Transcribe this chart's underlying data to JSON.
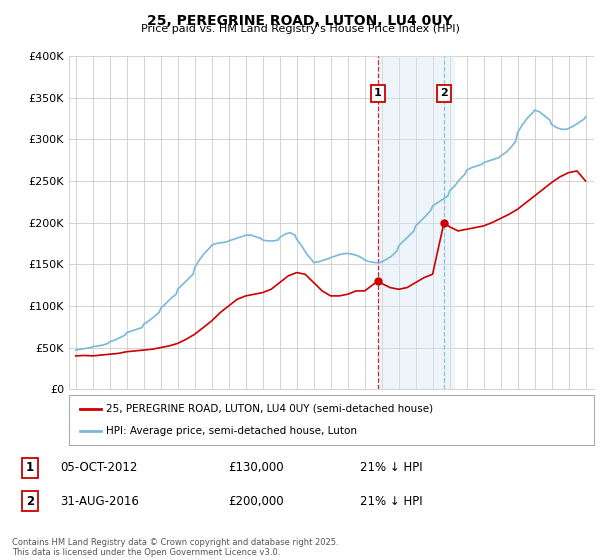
{
  "title": "25, PEREGRINE ROAD, LUTON, LU4 0UY",
  "subtitle": "Price paid vs. HM Land Registry's House Price Index (HPI)",
  "ylim": [
    0,
    400000
  ],
  "yticks": [
    0,
    50000,
    100000,
    150000,
    200000,
    250000,
    300000,
    350000,
    400000
  ],
  "ytick_labels": [
    "£0",
    "£50K",
    "£100K",
    "£150K",
    "£200K",
    "£250K",
    "£300K",
    "£350K",
    "£400K"
  ],
  "legend_entries": [
    "25, PEREGRINE ROAD, LUTON, LU4 0UY (semi-detached house)",
    "HPI: Average price, semi-detached house, Luton"
  ],
  "sale1_x": 2012.79,
  "sale1_y": 130000,
  "sale2_x": 2016.67,
  "sale2_y": 200000,
  "shade_x1": 2012.79,
  "shade_x2": 2017.3,
  "ann1_label": "1",
  "ann1_date": "05-OCT-2012",
  "ann1_price": "£130,000",
  "ann1_pct": "21% ↓ HPI",
  "ann2_label": "2",
  "ann2_date": "31-AUG-2016",
  "ann2_price": "£200,000",
  "ann2_pct": "21% ↓ HPI",
  "footer": "Contains HM Land Registry data © Crown copyright and database right 2025.\nThis data is licensed under the Open Government Licence v3.0.",
  "hpi_color": "#7ab8d9",
  "price_color": "#cc0000",
  "shade_color": "#d4e8f5",
  "grid_color": "#cccccc",
  "background_color": "#ffffff",
  "x_min": 1994.6,
  "x_max": 2025.5,
  "hpi_years": [
    1995.0,
    1995.3,
    1995.6,
    1995.9,
    1996.0,
    1996.3,
    1996.6,
    1996.9,
    1997.0,
    1997.3,
    1997.6,
    1997.9,
    1998.0,
    1998.3,
    1998.6,
    1998.9,
    1999.0,
    1999.3,
    1999.6,
    1999.9,
    2000.0,
    2000.3,
    2000.6,
    2000.9,
    2001.0,
    2001.3,
    2001.6,
    2001.9,
    2002.0,
    2002.3,
    2002.6,
    2002.9,
    2003.0,
    2003.3,
    2003.6,
    2003.9,
    2004.0,
    2004.3,
    2004.6,
    2004.9,
    2005.0,
    2005.3,
    2005.6,
    2005.9,
    2006.0,
    2006.3,
    2006.6,
    2006.9,
    2007.0,
    2007.3,
    2007.6,
    2007.9,
    2008.0,
    2008.3,
    2008.6,
    2008.9,
    2009.0,
    2009.3,
    2009.6,
    2009.9,
    2010.0,
    2010.3,
    2010.6,
    2010.9,
    2011.0,
    2011.3,
    2011.6,
    2011.9,
    2012.0,
    2012.3,
    2012.6,
    2012.9,
    2013.0,
    2013.3,
    2013.6,
    2013.9,
    2014.0,
    2014.3,
    2014.6,
    2014.9,
    2015.0,
    2015.3,
    2015.6,
    2015.9,
    2016.0,
    2016.3,
    2016.6,
    2016.9,
    2017.0,
    2017.3,
    2017.6,
    2017.9,
    2018.0,
    2018.3,
    2018.6,
    2018.9,
    2019.0,
    2019.3,
    2019.6,
    2019.9,
    2020.0,
    2020.3,
    2020.6,
    2020.9,
    2021.0,
    2021.3,
    2021.6,
    2021.9,
    2022.0,
    2022.3,
    2022.6,
    2022.9,
    2023.0,
    2023.3,
    2023.6,
    2023.9,
    2024.0,
    2024.3,
    2024.6,
    2024.9,
    2025.0
  ],
  "hpi_values": [
    47000,
    48000,
    49000,
    50000,
    51000,
    52000,
    53000,
    55000,
    57000,
    59000,
    62000,
    65000,
    68000,
    70000,
    72000,
    74000,
    78000,
    82000,
    87000,
    92000,
    97000,
    103000,
    109000,
    114000,
    120000,
    126000,
    132000,
    138000,
    146000,
    156000,
    164000,
    170000,
    173000,
    175000,
    176000,
    177000,
    178000,
    180000,
    182000,
    184000,
    185000,
    185000,
    183000,
    181000,
    179000,
    178000,
    178000,
    179000,
    182000,
    186000,
    188000,
    185000,
    180000,
    172000,
    162000,
    155000,
    152000,
    153000,
    155000,
    157000,
    158000,
    160000,
    162000,
    163000,
    163000,
    162000,
    160000,
    157000,
    155000,
    153000,
    152000,
    152000,
    153000,
    156000,
    160000,
    166000,
    172000,
    178000,
    184000,
    190000,
    196000,
    202000,
    208000,
    215000,
    220000,
    224000,
    228000,
    232000,
    238000,
    244000,
    252000,
    258000,
    263000,
    266000,
    268000,
    270000,
    272000,
    274000,
    276000,
    278000,
    280000,
    284000,
    290000,
    298000,
    308000,
    318000,
    326000,
    332000,
    335000,
    333000,
    328000,
    323000,
    318000,
    314000,
    312000,
    312000,
    313000,
    316000,
    320000,
    324000,
    327000
  ],
  "price_years": [
    1995.0,
    1995.5,
    1996.0,
    1996.5,
    1997.0,
    1997.5,
    1998.0,
    1998.5,
    1999.0,
    1999.5,
    2000.0,
    2000.5,
    2001.0,
    2001.5,
    2002.0,
    2002.5,
    2003.0,
    2003.5,
    2004.0,
    2004.5,
    2005.0,
    2005.5,
    2006.0,
    2006.5,
    2007.0,
    2007.5,
    2008.0,
    2008.5,
    2009.0,
    2009.5,
    2010.0,
    2010.5,
    2011.0,
    2011.5,
    2012.0,
    2012.79,
    2013.0,
    2013.5,
    2014.0,
    2014.5,
    2015.0,
    2015.5,
    2016.0,
    2016.67,
    2017.0,
    2017.5,
    2018.0,
    2018.5,
    2019.0,
    2019.5,
    2020.0,
    2020.5,
    2021.0,
    2021.5,
    2022.0,
    2022.5,
    2023.0,
    2023.5,
    2024.0,
    2024.5,
    2025.0
  ],
  "price_values": [
    40000,
    40500,
    40000,
    41000,
    42000,
    43000,
    45000,
    46000,
    47000,
    48000,
    50000,
    52000,
    55000,
    60000,
    66000,
    74000,
    82000,
    92000,
    100000,
    108000,
    112000,
    114000,
    116000,
    120000,
    128000,
    136000,
    140000,
    138000,
    128000,
    118000,
    112000,
    112000,
    114000,
    118000,
    118000,
    130000,
    127000,
    122000,
    120000,
    122000,
    128000,
    134000,
    138000,
    200000,
    195000,
    190000,
    192000,
    194000,
    196000,
    200000,
    205000,
    210000,
    216000,
    224000,
    232000,
    240000,
    248000,
    255000,
    260000,
    262000,
    250000
  ]
}
